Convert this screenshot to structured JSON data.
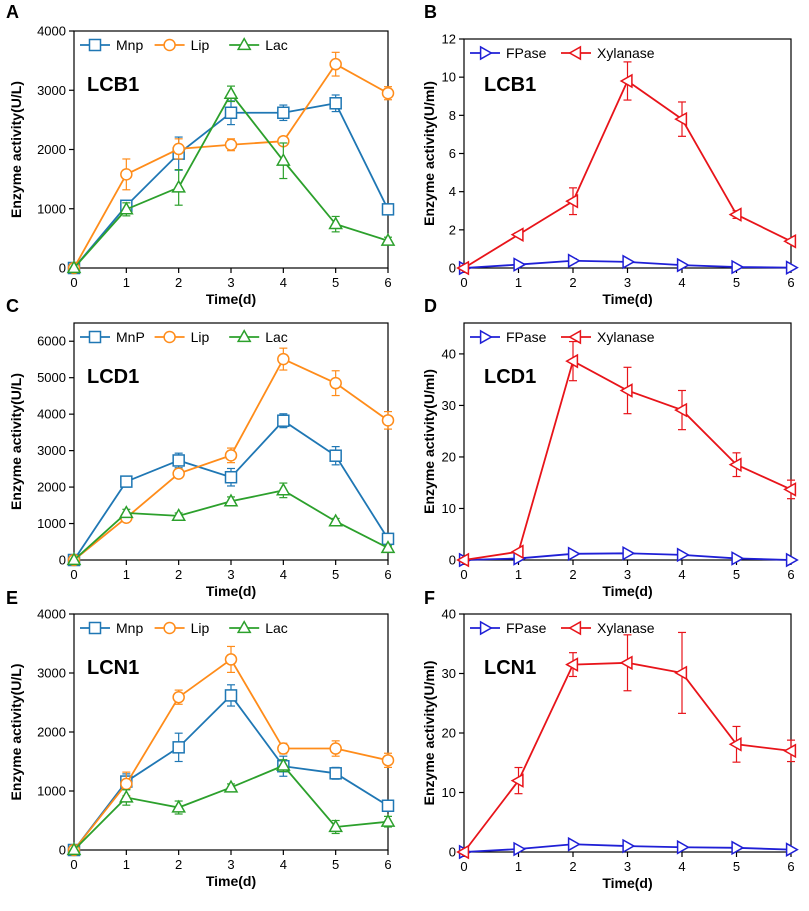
{
  "chart_data": [
    {
      "id": "A",
      "type": "line",
      "title": "LCB1",
      "xlabel": "Time(d)",
      "ylabel": "Enzyme activity(U/L)",
      "xlim": [
        0,
        6
      ],
      "ylim": [
        0,
        4000
      ],
      "xticks": [
        "0",
        "1",
        "2",
        "3",
        "4",
        "5",
        "6"
      ],
      "yticks": [
        "0",
        "1000",
        "2000",
        "3000",
        "4000"
      ],
      "legend_position": "top-left",
      "x": [
        0,
        1,
        2,
        3,
        4,
        5,
        6
      ],
      "series": [
        {
          "name": "Mnp",
          "color": "#1f77b4",
          "marker": "square",
          "values": [
            0,
            1050,
            1930,
            2620,
            2620,
            2780,
            990
          ],
          "errors": [
            0,
            80,
            280,
            200,
            130,
            140,
            90
          ]
        },
        {
          "name": "Lip",
          "color": "#ff8c1a",
          "marker": "circle",
          "values": [
            0,
            1580,
            2010,
            2080,
            2140,
            3440,
            2950
          ],
          "errors": [
            0,
            260,
            170,
            100,
            60,
            200,
            110
          ]
        },
        {
          "name": "Lac",
          "color": "#2ca02c",
          "marker": "triangle-up",
          "values": [
            0,
            990,
            1360,
            2940,
            1810,
            740,
            460
          ],
          "errors": [
            0,
            110,
            300,
            130,
            300,
            130,
            60
          ]
        }
      ]
    },
    {
      "id": "B",
      "type": "line",
      "title": "LCB1",
      "xlabel": "Time(d)",
      "ylabel": "Enzyme activity(U/ml)",
      "xlim": [
        0,
        6
      ],
      "ylim": [
        0,
        12
      ],
      "xticks": [
        "0",
        "1",
        "2",
        "3",
        "4",
        "5",
        "6"
      ],
      "yticks": [
        "0",
        "2",
        "4",
        "6",
        "8",
        "10",
        "12"
      ],
      "legend_position": "top-left",
      "x": [
        0,
        1,
        2,
        3,
        4,
        5,
        6
      ],
      "series": [
        {
          "name": "FPase",
          "color": "#1f1fd6",
          "marker": "triangle-right",
          "values": [
            0,
            0.18,
            0.38,
            0.32,
            0.15,
            0.05,
            0.02
          ],
          "errors": [
            0,
            0.05,
            0.1,
            0.08,
            0.05,
            0.02,
            0.01
          ]
        },
        {
          "name": "Xylanase",
          "color": "#e8141a",
          "marker": "triangle-left",
          "values": [
            0,
            1.75,
            3.5,
            9.8,
            7.8,
            2.8,
            1.4
          ],
          "errors": [
            0,
            0.1,
            0.7,
            1.0,
            0.9,
            0.2,
            0.1
          ]
        }
      ]
    },
    {
      "id": "C",
      "type": "line",
      "title": "LCD1",
      "xlabel": "Time(d)",
      "ylabel": "Enzyme activity(U/L)",
      "xlim": [
        0,
        6
      ],
      "ylim": [
        0,
        6500
      ],
      "xticks": [
        "0",
        "1",
        "2",
        "3",
        "4",
        "5",
        "6"
      ],
      "yticks": [
        "0",
        "1000",
        "2000",
        "3000",
        "4000",
        "5000",
        "6000"
      ],
      "legend_position": "top",
      "x": [
        0,
        1,
        2,
        3,
        4,
        5,
        6
      ],
      "series": [
        {
          "name": "MnP",
          "color": "#1f77b4",
          "marker": "square",
          "values": [
            0,
            2150,
            2730,
            2270,
            3820,
            2860,
            580
          ],
          "errors": [
            0,
            150,
            200,
            240,
            190,
            250,
            130
          ]
        },
        {
          "name": "Lip",
          "color": "#ff8c1a",
          "marker": "circle",
          "values": [
            0,
            1160,
            2370,
            2870,
            5510,
            4850,
            3830
          ],
          "errors": [
            0,
            100,
            120,
            200,
            300,
            340,
            240
          ]
        },
        {
          "name": "Lac",
          "color": "#2ca02c",
          "marker": "triangle-up",
          "values": [
            0,
            1290,
            1210,
            1610,
            1910,
            1060,
            330
          ],
          "errors": [
            0,
            100,
            80,
            120,
            200,
            80,
            60
          ]
        }
      ]
    },
    {
      "id": "D",
      "type": "line",
      "title": "LCD1",
      "xlabel": "Time(d)",
      "ylabel": "Enzyme activity(U/ml)",
      "xlim": [
        0,
        6
      ],
      "ylim": [
        0,
        46
      ],
      "xticks": [
        "0",
        "1",
        "2",
        "3",
        "4",
        "5",
        "6"
      ],
      "yticks": [
        "0",
        "10",
        "20",
        "30",
        "40"
      ],
      "legend_position": "top",
      "x": [
        0,
        1,
        2,
        3,
        4,
        5,
        6
      ],
      "series": [
        {
          "name": "FPase",
          "color": "#1f1fd6",
          "marker": "triangle-right",
          "values": [
            0,
            0.3,
            1.2,
            1.3,
            1.0,
            0.3,
            0.0
          ],
          "errors": [
            0,
            0.1,
            0.2,
            0.2,
            0.2,
            0.1,
            0.0
          ]
        },
        {
          "name": "Xylanase",
          "color": "#e8141a",
          "marker": "triangle-left",
          "values": [
            0,
            1.6,
            38.6,
            32.9,
            29.1,
            18.5,
            13.7
          ],
          "errors": [
            0,
            0.3,
            3.8,
            4.5,
            3.8,
            2.3,
            1.8
          ]
        }
      ]
    },
    {
      "id": "E",
      "type": "line",
      "title": "LCN1",
      "xlabel": "Time(d)",
      "ylabel": "Enzyme activity(U/L)",
      "xlim": [
        0,
        6
      ],
      "ylim": [
        0,
        4000
      ],
      "xticks": [
        "0",
        "1",
        "2",
        "3",
        "4",
        "5",
        "6"
      ],
      "yticks": [
        "0",
        "1000",
        "2000",
        "3000",
        "4000"
      ],
      "legend_position": "top-left",
      "x": [
        0,
        1,
        2,
        3,
        4,
        5,
        6
      ],
      "series": [
        {
          "name": "Mnp",
          "color": "#1f77b4",
          "marker": "square",
          "values": [
            0,
            1160,
            1740,
            2620,
            1420,
            1300,
            750
          ],
          "errors": [
            0,
            130,
            240,
            180,
            170,
            100,
            80
          ]
        },
        {
          "name": "Lip",
          "color": "#ff8c1a",
          "marker": "circle",
          "values": [
            0,
            1120,
            2590,
            3230,
            1720,
            1720,
            1520
          ],
          "errors": [
            0,
            200,
            120,
            220,
            90,
            130,
            120
          ]
        },
        {
          "name": "Lac",
          "color": "#2ca02c",
          "marker": "triangle-up",
          "values": [
            0,
            890,
            720,
            1060,
            1430,
            390,
            480
          ],
          "errors": [
            0,
            130,
            110,
            60,
            100,
            110,
            90
          ]
        }
      ]
    },
    {
      "id": "F",
      "type": "line",
      "title": "LCN1",
      "xlabel": "Time(d)",
      "ylabel": "Enzyme activity(U/ml)",
      "xlim": [
        0,
        6
      ],
      "ylim": [
        0,
        40
      ],
      "xticks": [
        "0",
        "1",
        "2",
        "3",
        "4",
        "5",
        "6"
      ],
      "yticks": [
        "0",
        "10",
        "20",
        "30",
        "40"
      ],
      "legend_position": "top",
      "x": [
        0,
        1,
        2,
        3,
        4,
        5,
        6
      ],
      "series": [
        {
          "name": "FPase",
          "color": "#1f1fd6",
          "marker": "triangle-right",
          "values": [
            0,
            0.5,
            1.3,
            1.0,
            0.8,
            0.7,
            0.4
          ],
          "errors": [
            0,
            0.1,
            0.2,
            0.2,
            0.2,
            0.1,
            0.1
          ]
        },
        {
          "name": "Xylanase",
          "color": "#e8141a",
          "marker": "triangle-left",
          "values": [
            0,
            12.0,
            31.5,
            31.8,
            30.1,
            18.1,
            17.0
          ],
          "errors": [
            0,
            2.2,
            2.0,
            4.7,
            6.8,
            3.0,
            1.8
          ]
        }
      ]
    }
  ]
}
